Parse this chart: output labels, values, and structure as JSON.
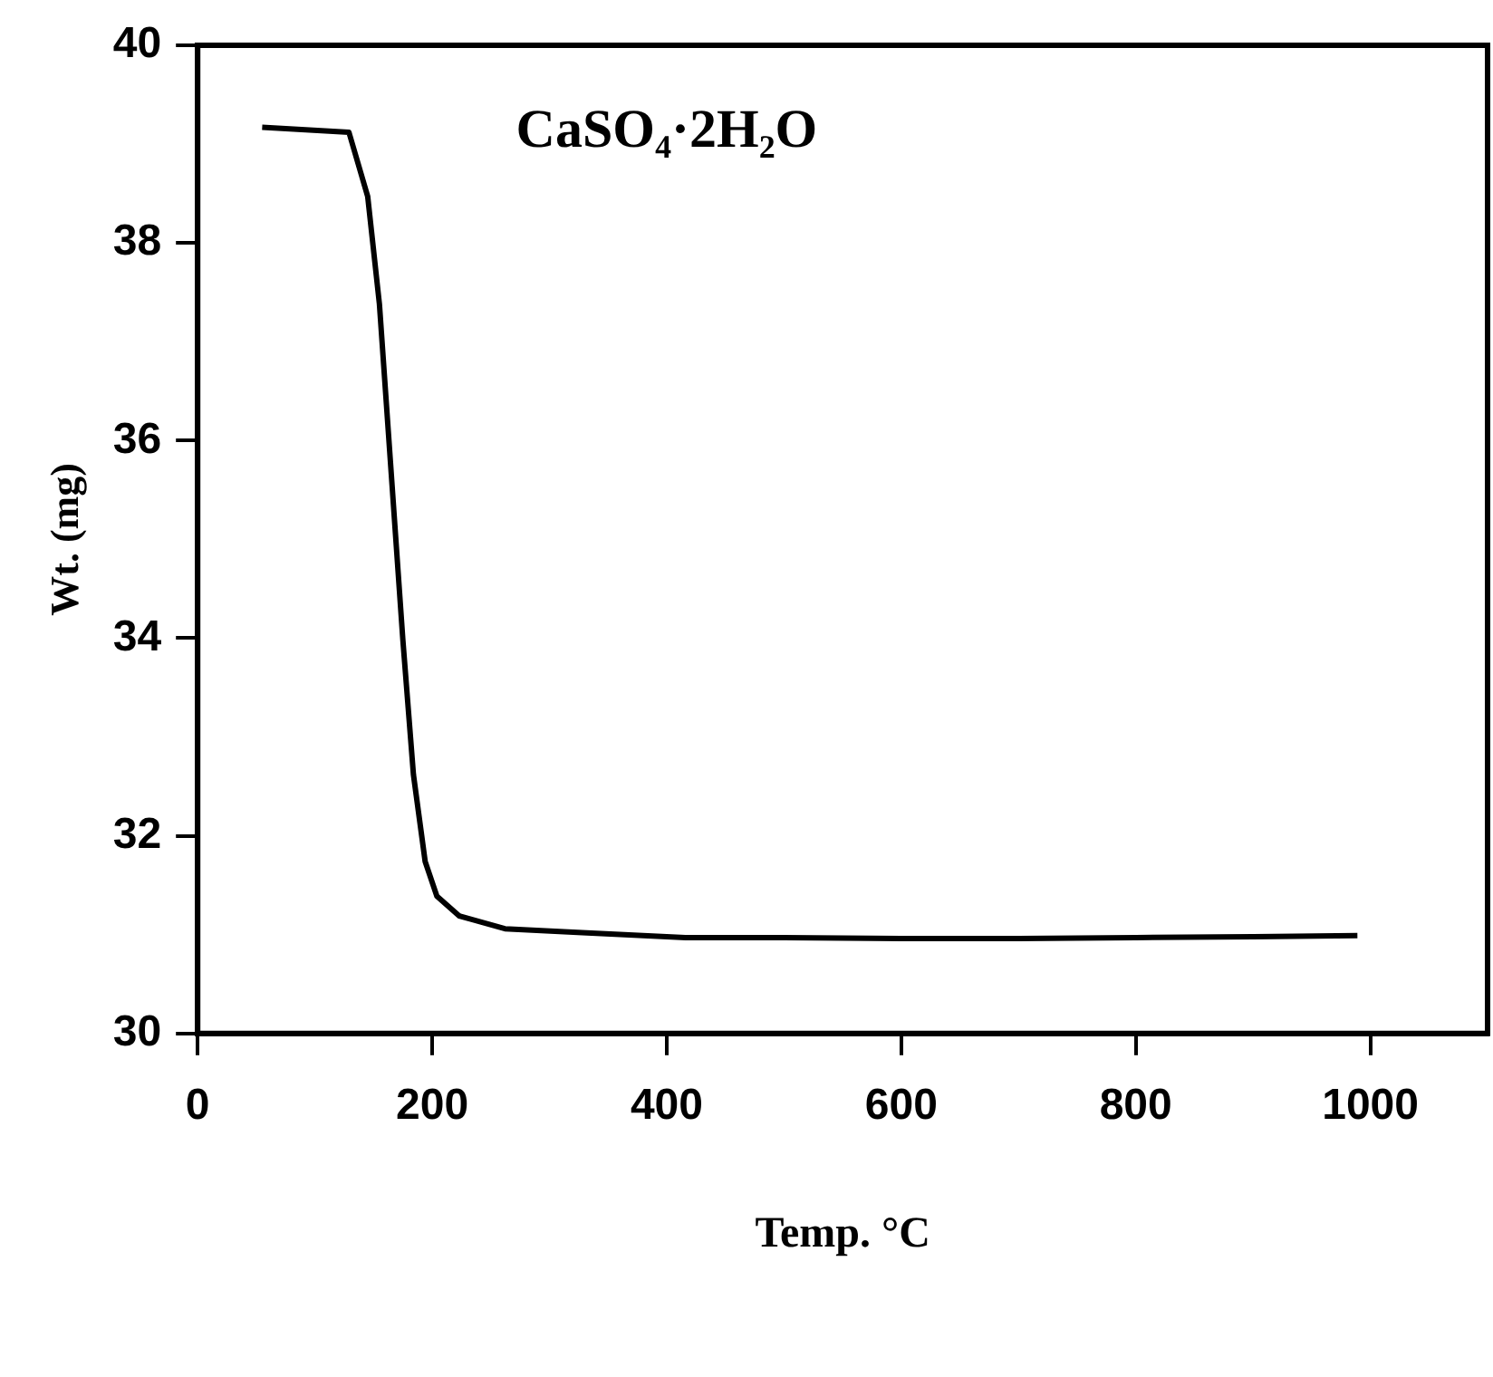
{
  "chart_data": {
    "type": "line",
    "title": "CaSO₄·2H₂O",
    "xlabel": "Temp. °C",
    "ylabel": "Wt. (mg)",
    "x": [
      55,
      129,
      145,
      155,
      165,
      175,
      184,
      194,
      204,
      223,
      262,
      328,
      416,
      500,
      600,
      700,
      800,
      900,
      989
    ],
    "values": [
      39.17,
      39.12,
      38.47,
      37.38,
      35.68,
      33.98,
      32.62,
      31.74,
      31.39,
      31.19,
      31.06,
      31.02,
      30.97,
      30.97,
      30.96,
      30.96,
      30.97,
      30.98,
      30.99
    ],
    "color": "#000000",
    "xlim": [
      0,
      1100
    ],
    "xticks": [
      0,
      200,
      400,
      600,
      800,
      1000
    ],
    "ylim": [
      30,
      40
    ],
    "yticks": [
      30,
      32,
      34,
      36,
      38,
      40
    ],
    "marker": "none",
    "line_style": "solid",
    "legend": false
  }
}
